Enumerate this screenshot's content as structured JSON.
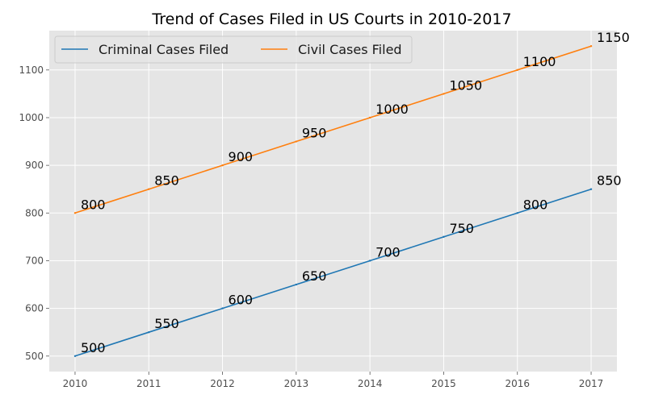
{
  "chart_data": {
    "type": "line",
    "title": "Trend of Cases Filed in US Courts in 2010-2017",
    "xlabel": "",
    "ylabel": "",
    "x": [
      2010,
      2011,
      2012,
      2013,
      2014,
      2015,
      2016,
      2017
    ],
    "x_ticks": [
      "2010",
      "2011",
      "2012",
      "2013",
      "2014",
      "2015",
      "2016",
      "2017"
    ],
    "y_ticks": [
      "500",
      "600",
      "700",
      "800",
      "900",
      "1000",
      "1100"
    ],
    "xlim": [
      2009.65,
      2017.35
    ],
    "ylim": [
      467.5,
      1182.5
    ],
    "grid": true,
    "legend_position": "top-left",
    "series": [
      {
        "name": "Criminal Cases Filed",
        "color": "#1f77b4",
        "values": [
          500,
          550,
          600,
          650,
          700,
          750,
          800,
          850
        ],
        "labels": [
          "500",
          "550",
          "600",
          "650",
          "700",
          "750",
          "800",
          "850"
        ]
      },
      {
        "name": "Civil Cases Filed",
        "color": "#ff7f0e",
        "values": [
          800,
          850,
          900,
          950,
          1000,
          1050,
          1100,
          1150
        ],
        "labels": [
          "800",
          "850",
          "900",
          "950",
          "1000",
          "1050",
          "1100",
          "1150"
        ]
      }
    ]
  }
}
